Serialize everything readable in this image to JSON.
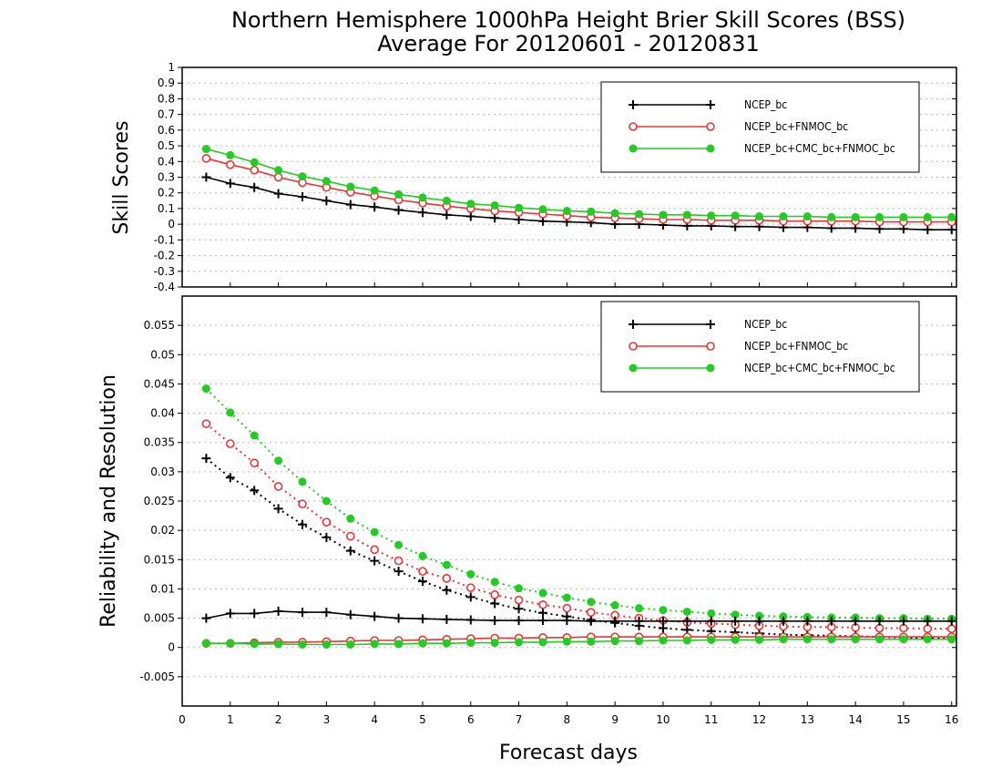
{
  "chart_data": [
    {
      "type": "line",
      "panel": "skill-scores",
      "title": [
        "Northern Hemisphere 1000hPa Height Brier Skill Scores (BSS)",
        "Average For 20120601 - 20120831"
      ],
      "xlabel": "Forecast days",
      "ylabel": "Skill Scores",
      "xlim": [
        0,
        16.1
      ],
      "ylim": [
        -0.4,
        1
      ],
      "x_ticks": [
        0,
        1,
        2,
        3,
        4,
        5,
        6,
        7,
        8,
        9,
        10,
        11,
        12,
        13,
        14,
        15,
        16
      ],
      "y_ticks": [
        -0.4,
        -0.3,
        -0.2,
        -0.1,
        0,
        0.1,
        0.2,
        0.3,
        0.4,
        0.5,
        0.6,
        0.7,
        0.8,
        0.9,
        1
      ],
      "y_tick_labels": [
        "-0.4",
        "-0.3",
        "-0.2",
        "-0.1",
        "0",
        "0.1",
        "0.2",
        "0.3",
        "0.4",
        "0.5",
        "0.6",
        "0.7",
        "0.8",
        "0.9",
        "1"
      ],
      "grid": true,
      "legend": "top-right",
      "x": [
        0.5,
        1,
        1.5,
        2,
        2.5,
        3,
        3.5,
        4,
        4.5,
        5,
        5.5,
        6,
        6.5,
        7,
        7.5,
        8,
        8.5,
        9,
        9.5,
        10,
        10.5,
        11,
        11.5,
        12,
        12.5,
        13,
        13.5,
        14,
        14.5,
        15,
        15.5,
        16
      ],
      "series": [
        {
          "name": "NCEP_bc",
          "color": "#000000",
          "marker": "plus",
          "line": "solid",
          "values": [
            0.3,
            0.26,
            0.235,
            0.195,
            0.175,
            0.15,
            0.125,
            0.11,
            0.09,
            0.075,
            0.06,
            0.05,
            0.04,
            0.03,
            0.02,
            0.015,
            0.01,
            0.0,
            0.0,
            -0.005,
            -0.01,
            -0.01,
            -0.015,
            -0.015,
            -0.02,
            -0.02,
            -0.025,
            -0.025,
            -0.03,
            -0.03,
            -0.035,
            -0.035
          ]
        },
        {
          "name": "NCEP_bc+FNMOC_bc",
          "color": "#ee3333",
          "marker": "circle-open",
          "line": "solid",
          "values": [
            0.42,
            0.38,
            0.345,
            0.3,
            0.265,
            0.235,
            0.205,
            0.18,
            0.155,
            0.135,
            0.115,
            0.1,
            0.085,
            0.075,
            0.065,
            0.055,
            0.045,
            0.04,
            0.035,
            0.03,
            0.03,
            0.025,
            0.025,
            0.025,
            0.02,
            0.02,
            0.02,
            0.02,
            0.015,
            0.015,
            0.015,
            0.015
          ]
        },
        {
          "name": "NCEP_bc+CMC_bc+FNMOC_bc",
          "color": "#22cc22",
          "marker": "circle-filled",
          "line": "solid",
          "values": [
            0.48,
            0.44,
            0.395,
            0.345,
            0.305,
            0.275,
            0.24,
            0.215,
            0.19,
            0.17,
            0.15,
            0.13,
            0.12,
            0.105,
            0.095,
            0.085,
            0.08,
            0.07,
            0.065,
            0.06,
            0.06,
            0.055,
            0.055,
            0.05,
            0.05,
            0.05,
            0.045,
            0.045,
            0.045,
            0.045,
            0.045,
            0.045
          ]
        }
      ]
    },
    {
      "type": "line",
      "panel": "reliability-resolution",
      "xlabel": "Forecast days",
      "ylabel": "Reliability and Resolution",
      "xlim": [
        0,
        16.1
      ],
      "ylim": [
        -0.01,
        0.06
      ],
      "x_ticks": [
        0,
        1,
        2,
        3,
        4,
        5,
        6,
        7,
        8,
        9,
        10,
        11,
        12,
        13,
        14,
        15,
        16
      ],
      "y_ticks": [
        -0.005,
        0,
        0.005,
        0.01,
        0.015,
        0.02,
        0.025,
        0.03,
        0.035,
        0.04,
        0.045,
        0.05,
        0.055
      ],
      "y_tick_labels": [
        "-0.005",
        "0",
        "0.005",
        "0.01",
        "0.015",
        "0.02",
        "0.025",
        "0.03",
        "0.035",
        "0.04",
        "0.045",
        "0.05",
        "0.055"
      ],
      "grid": true,
      "legend": "top-right",
      "legend_entries": [
        {
          "name": "NCEP_bc",
          "color": "#000000",
          "marker": "plus"
        },
        {
          "name": "NCEP_bc+FNMOC_bc",
          "color": "#ee3333",
          "marker": "circle-open"
        },
        {
          "name": "NCEP_bc+CMC_bc+FNMOC_bc",
          "color": "#22cc22",
          "marker": "circle-filled"
        }
      ],
      "x": [
        0.5,
        1,
        1.5,
        2,
        2.5,
        3,
        3.5,
        4,
        4.5,
        5,
        5.5,
        6,
        6.5,
        7,
        7.5,
        8,
        8.5,
        9,
        9.5,
        10,
        10.5,
        11,
        11.5,
        12,
        12.5,
        13,
        13.5,
        14,
        14.5,
        15,
        15.5,
        16
      ],
      "series": [
        {
          "color": "#000000",
          "marker": "plus",
          "line": "dotted",
          "values": [
            0.0323,
            0.029,
            0.0268,
            0.0237,
            0.021,
            0.0188,
            0.0165,
            0.0148,
            0.013,
            0.0113,
            0.0098,
            0.0086,
            0.0075,
            0.0066,
            0.0059,
            0.0053,
            0.0047,
            0.0042,
            0.0037,
            0.0033,
            0.003,
            0.0028,
            0.0026,
            0.0024,
            0.0022,
            0.0021,
            0.002,
            0.0019,
            0.0018,
            0.0017,
            0.0016,
            0.0015
          ]
        },
        {
          "color": "#ee3333",
          "marker": "circle-open",
          "line": "dotted",
          "values": [
            0.0382,
            0.0348,
            0.0315,
            0.0275,
            0.0245,
            0.0214,
            0.019,
            0.0167,
            0.0148,
            0.013,
            0.0118,
            0.0102,
            0.009,
            0.0081,
            0.0073,
            0.0067,
            0.006,
            0.0055,
            0.005,
            0.0046,
            0.0043,
            0.0041,
            0.0039,
            0.0037,
            0.0036,
            0.0035,
            0.0035,
            0.0034,
            0.0033,
            0.0033,
            0.0032,
            0.0032
          ]
        },
        {
          "color": "#22cc22",
          "marker": "circle-filled",
          "line": "dotted",
          "values": [
            0.0442,
            0.0401,
            0.0362,
            0.0319,
            0.0283,
            0.025,
            0.022,
            0.0197,
            0.0175,
            0.0156,
            0.0141,
            0.0125,
            0.0112,
            0.0101,
            0.0093,
            0.0085,
            0.0078,
            0.0072,
            0.0067,
            0.0064,
            0.0061,
            0.0058,
            0.0056,
            0.0054,
            0.0053,
            0.0052,
            0.0051,
            0.0051,
            0.005,
            0.005,
            0.0049,
            0.0049
          ]
        },
        {
          "color": "#000000",
          "marker": "plus",
          "line": "solid",
          "values": [
            0.005,
            0.0058,
            0.0058,
            0.0062,
            0.006,
            0.006,
            0.0056,
            0.0053,
            0.005,
            0.0049,
            0.0048,
            0.0047,
            0.0046,
            0.0046,
            0.0046,
            0.0046,
            0.0045,
            0.0045,
            0.0045,
            0.0045,
            0.0045,
            0.0045,
            0.0045,
            0.0045,
            0.0045,
            0.0045,
            0.0045,
            0.0045,
            0.0045,
            0.0045,
            0.0045,
            0.0045
          ]
        },
        {
          "color": "#ee3333",
          "marker": "circle-open",
          "line": "solid",
          "values": [
            0.0007,
            0.0007,
            0.0008,
            0.0009,
            0.0009,
            0.001,
            0.0011,
            0.0012,
            0.0012,
            0.0013,
            0.0014,
            0.0015,
            0.0016,
            0.0016,
            0.0017,
            0.0017,
            0.0018,
            0.0018,
            0.0018,
            0.0018,
            0.0018,
            0.0018,
            0.0018,
            0.0018,
            0.0018,
            0.0018,
            0.0018,
            0.0018,
            0.0018,
            0.0018,
            0.0018,
            0.0018
          ]
        },
        {
          "color": "#22cc22",
          "marker": "circle-filled",
          "line": "solid",
          "values": [
            0.0007,
            0.0007,
            0.0006,
            0.0006,
            0.0005,
            0.0005,
            0.0005,
            0.0006,
            0.0006,
            0.0007,
            0.0007,
            0.0008,
            0.0008,
            0.0009,
            0.0009,
            0.001,
            0.001,
            0.0011,
            0.0011,
            0.0012,
            0.0012,
            0.0013,
            0.0013,
            0.0013,
            0.0014,
            0.0014,
            0.0014,
            0.0014,
            0.0014,
            0.0014,
            0.0014,
            0.0014
          ]
        }
      ]
    }
  ]
}
